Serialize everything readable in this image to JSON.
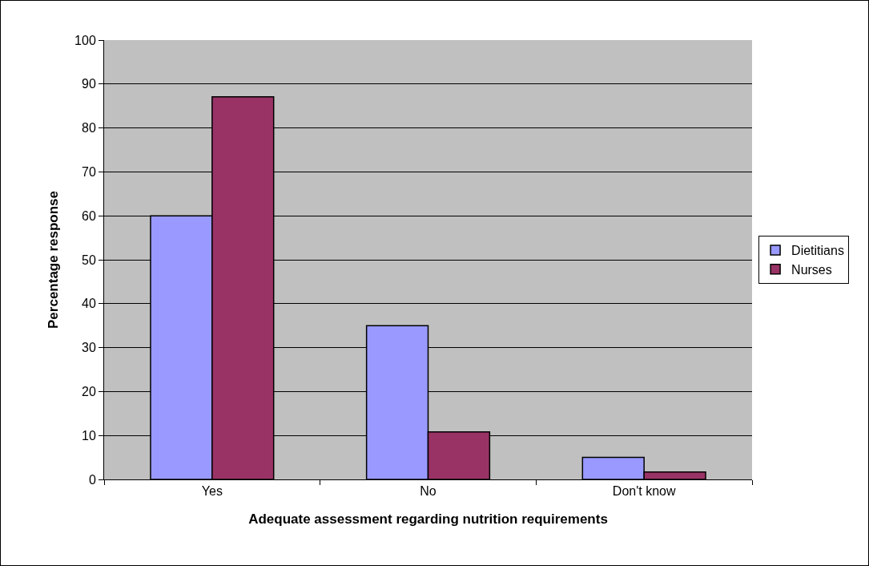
{
  "chart_data": {
    "type": "bar",
    "xlabel": "Adequate assessment regarding nutrition requirements",
    "ylabel": "Percentage response",
    "categories": [
      "Yes",
      "No",
      "Don't know"
    ],
    "series": [
      {
        "name": "Dietitians",
        "color": "#9999ff",
        "values": [
          60,
          35,
          5
        ]
      },
      {
        "name": "Nurses",
        "color": "#993366",
        "values": [
          87.1,
          10.8,
          1.7
        ]
      }
    ],
    "ylim": [
      0,
      100
    ],
    "yticks": [
      0,
      10,
      20,
      30,
      40,
      50,
      60,
      70,
      80,
      90,
      100
    ],
    "grid": "y",
    "legend": "right"
  }
}
